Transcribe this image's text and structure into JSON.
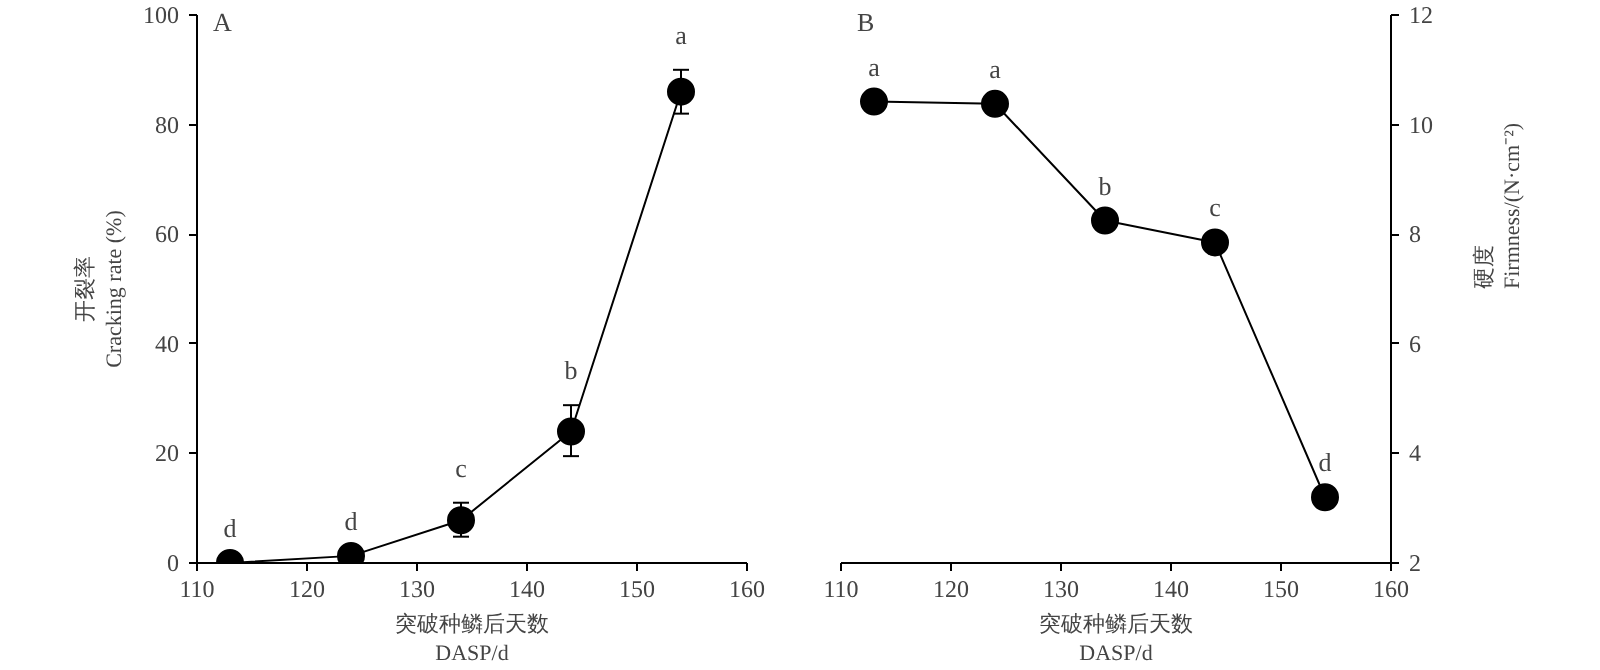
{
  "chart_data": [
    {
      "type": "line",
      "title": "A",
      "xlabel": "突破种鳞后天数\nDASP/d",
      "ylabel": "开裂率\nCracking rate (%)",
      "x": [
        113,
        124,
        134,
        144,
        154
      ],
      "xlim": [
        110,
        160
      ],
      "xticks": [
        110,
        120,
        130,
        140,
        150,
        160
      ],
      "ylim": [
        0,
        100
      ],
      "yticks": [
        0,
        20,
        40,
        60,
        80,
        100
      ],
      "grid": false,
      "marker": "circle",
      "line_style": "solid",
      "series": [
        {
          "color": "#000000",
          "values": [
            0,
            1.3,
            7.8,
            24,
            86
          ],
          "errors": [
            null,
            null,
            [
              4.8,
              11
            ],
            [
              19.5,
              28.8
            ],
            [
              82,
              90
            ]
          ]
        }
      ],
      "annotations": [
        {
          "text": "d",
          "x": 113,
          "y": 0
        },
        {
          "text": "d",
          "x": 124,
          "y": 1.3
        },
        {
          "text": "c",
          "x": 134,
          "y": 11
        },
        {
          "text": "b",
          "x": 144,
          "y": 28.8
        },
        {
          "text": "a",
          "x": 154,
          "y": 90
        }
      ]
    },
    {
      "type": "line",
      "title": "B",
      "xlabel": "突破种鳞后天数\nDASP/d",
      "y2label": "硬度\nFirmness/(N·cm⁻²)",
      "x": [
        113,
        124,
        134,
        144,
        154
      ],
      "xlim": [
        110,
        160
      ],
      "xticks": [
        110,
        120,
        130,
        140,
        150,
        160
      ],
      "y2lim": [
        2,
        12
      ],
      "y2ticks": [
        2,
        4,
        6,
        8,
        10,
        12
      ],
      "grid": false,
      "marker": "circle",
      "line_style": "solid",
      "series": [
        {
          "color": "#000000",
          "axis": "y2",
          "values": [
            10.42,
            10.38,
            8.25,
            7.85,
            3.2
          ]
        }
      ],
      "annotations": [
        "a",
        "a",
        "b",
        "c",
        "d"
      ]
    }
  ]
}
